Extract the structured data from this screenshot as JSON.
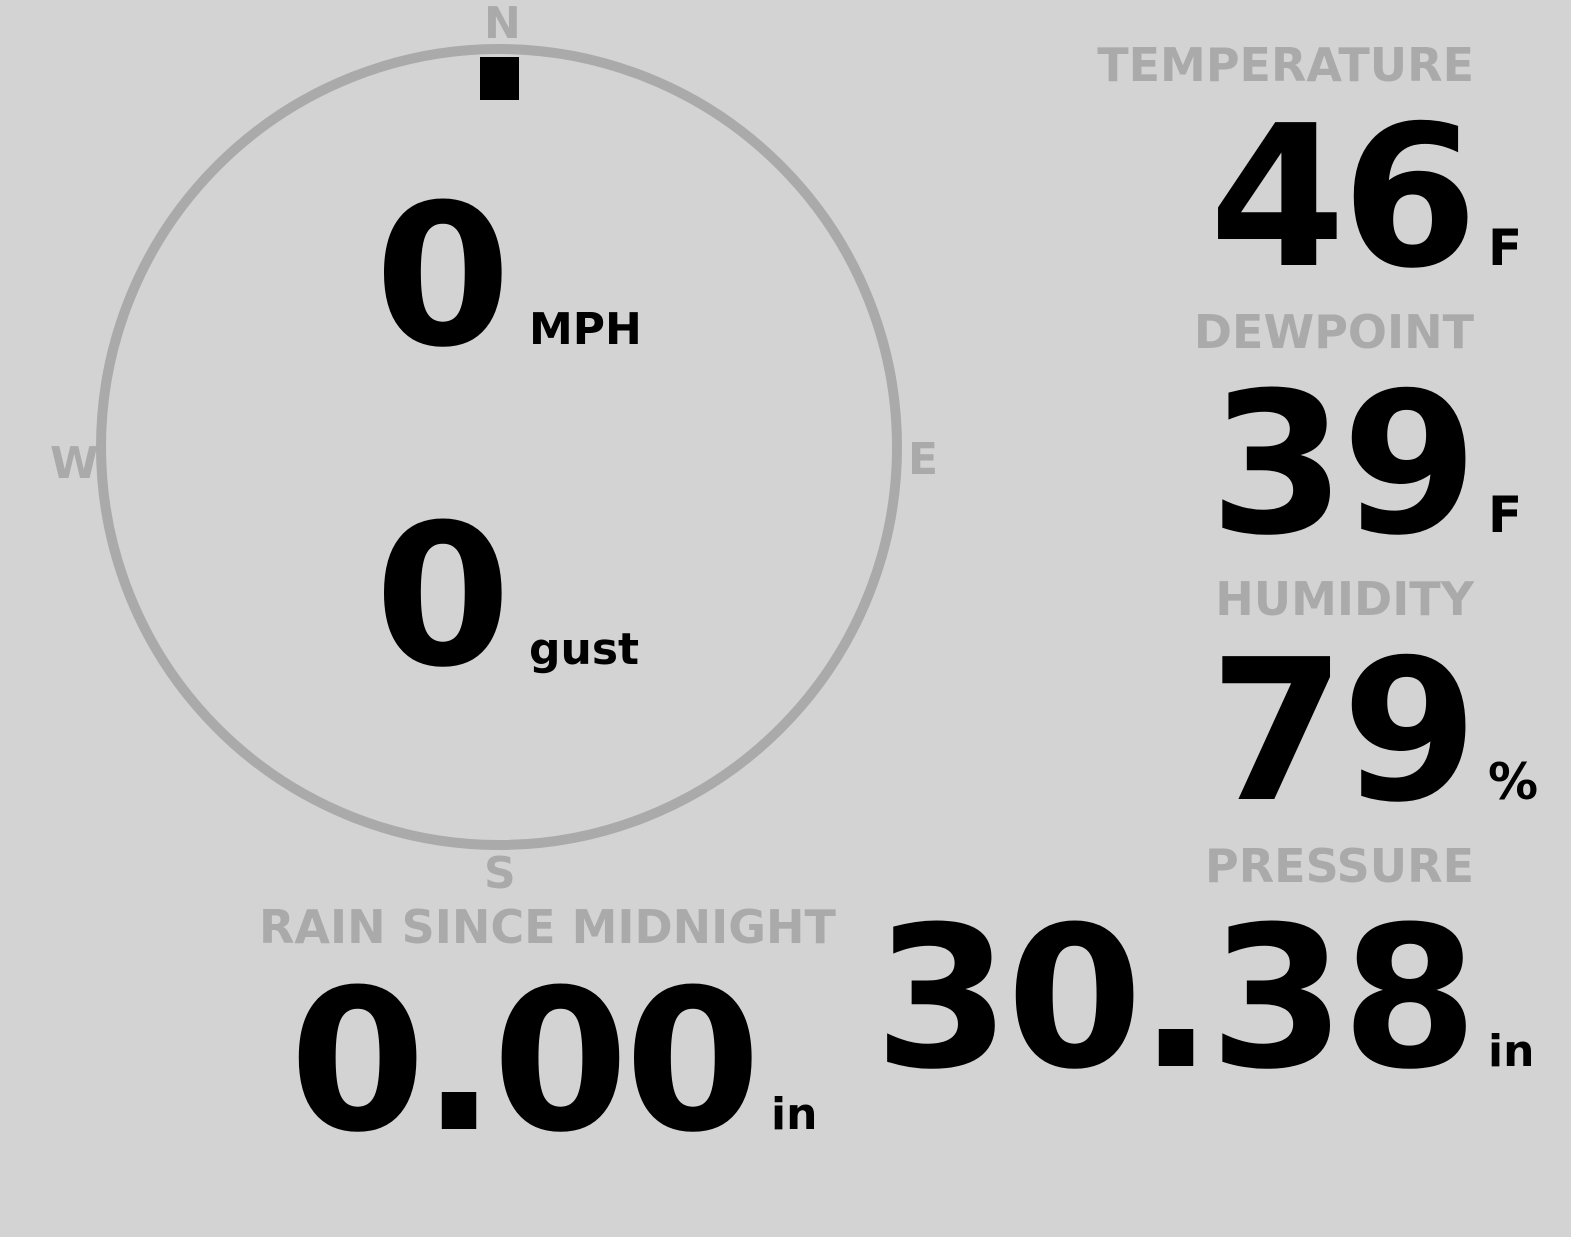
{
  "wind": {
    "speed": "0",
    "speed_unit": "MPH",
    "gust": "0",
    "gust_unit": "gust",
    "direction_degrees": 0,
    "compass": {
      "n": "N",
      "e": "E",
      "s": "S",
      "w": "W"
    }
  },
  "temperature": {
    "label": "TEMPERATURE",
    "value": "46",
    "unit": "F"
  },
  "dewpoint": {
    "label": "DEWPOINT",
    "value": "39",
    "unit": "F"
  },
  "humidity": {
    "label": "HUMIDITY",
    "value": "79",
    "unit": "%"
  },
  "pressure": {
    "label": "PRESSURE",
    "value": "30.38",
    "unit": "in"
  },
  "rain": {
    "label": "RAIN SINCE MIDNIGHT",
    "value": "0.00",
    "unit": "in"
  },
  "colors": {
    "background": "#d3d3d3",
    "muted": "#aaaaaa",
    "text": "#000000"
  }
}
